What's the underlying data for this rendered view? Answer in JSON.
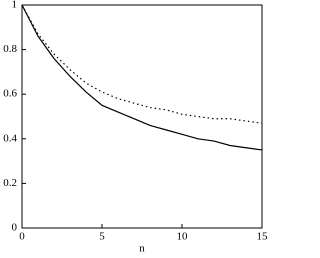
{
  "chart_data": {
    "type": "line",
    "xlabel": "n",
    "x": [
      0,
      1,
      2,
      3,
      4,
      5,
      6,
      7,
      8,
      9,
      10,
      11,
      12,
      13,
      14,
      15
    ],
    "series": [
      {
        "color": "#000000",
        "line_style": "solid",
        "values": [
          1.0,
          0.86,
          0.76,
          0.68,
          0.61,
          0.55,
          0.52,
          0.49,
          0.46,
          0.44,
          0.42,
          0.4,
          0.39,
          0.37,
          0.36,
          0.35
        ]
      },
      {
        "color": "#000000",
        "line_style": "dotted",
        "values": [
          1.0,
          0.87,
          0.78,
          0.71,
          0.65,
          0.61,
          0.58,
          0.56,
          0.54,
          0.53,
          0.51,
          0.5,
          0.49,
          0.49,
          0.48,
          0.47
        ]
      }
    ],
    "xlim": [
      0,
      15
    ],
    "xticks": [
      0,
      5,
      10,
      15
    ],
    "ylim": [
      0,
      1
    ],
    "yticks": [
      0,
      0.2,
      0.4,
      0.6,
      0.8,
      1
    ]
  }
}
